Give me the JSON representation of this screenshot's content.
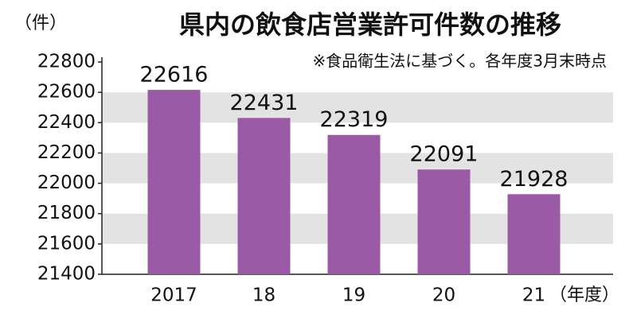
{
  "chart_data": {
    "type": "bar",
    "title": "県内の飲食店営業許可件数の推移",
    "subtitle": "※食品衛生法に基づく。各年度3月末時点",
    "y_label": "（件）",
    "x_label": "（年度）",
    "categories": [
      "2017",
      "18",
      "19",
      "20",
      "21"
    ],
    "values": [
      22616,
      22431,
      22319,
      22091,
      21928
    ],
    "color": "#9b5aa6",
    "ylim": [
      21400,
      22800
    ],
    "yticks": [
      21400,
      21600,
      21800,
      22000,
      22200,
      22400,
      22600,
      22800
    ],
    "grid": true
  }
}
